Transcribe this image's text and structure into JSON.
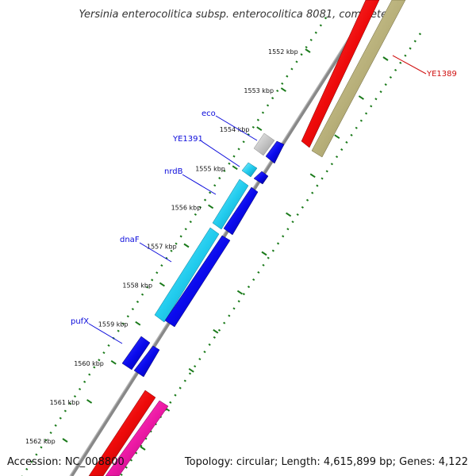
{
  "header": {
    "title": "Yersinia enterocolitica subsp. enterocolitica 8081, complete..."
  },
  "footer": {
    "accession": "Accession: NC_008800",
    "topology": "Topology: circular; Length: 4,615,899 bp; Genes: 4,122"
  },
  "colors": {
    "backbone": "#7a7a7a",
    "tick": "#1a7a1a",
    "label_blue": "#0a0adb",
    "label_red": "#d01010",
    "cds_forward": "#0a0aee",
    "cds_cyan": "#22ccee",
    "cds_red": "#ee0a0a",
    "cds_olive": "#b8b07a",
    "cds_magenta": "#ee1aa6",
    "cds_grey": "#c0c0c0"
  },
  "ruler": {
    "ticks": [
      {
        "label": "1552 kbp"
      },
      {
        "label": "1553 kbp"
      },
      {
        "label": "1554 kbp"
      },
      {
        "label": "1555 kbp"
      },
      {
        "label": "1556 kbp"
      },
      {
        "label": "1557 kbp"
      },
      {
        "label": "1558 kbp"
      },
      {
        "label": "1559 kbp"
      },
      {
        "label": "1560 kbp"
      },
      {
        "label": "1561 kbp"
      },
      {
        "label": "1562 kbp"
      }
    ]
  },
  "gene_labels": [
    {
      "name": "eco",
      "color": "#0a0adb"
    },
    {
      "name": "YE1391",
      "color": "#0a0adb"
    },
    {
      "name": "nrdB",
      "color": "#0a0adb"
    },
    {
      "name": "dnaF",
      "color": "#0a0adb"
    },
    {
      "name": "pufX",
      "color": "#0a0adb"
    },
    {
      "name": "YE1389",
      "color": "#d01010"
    }
  ]
}
